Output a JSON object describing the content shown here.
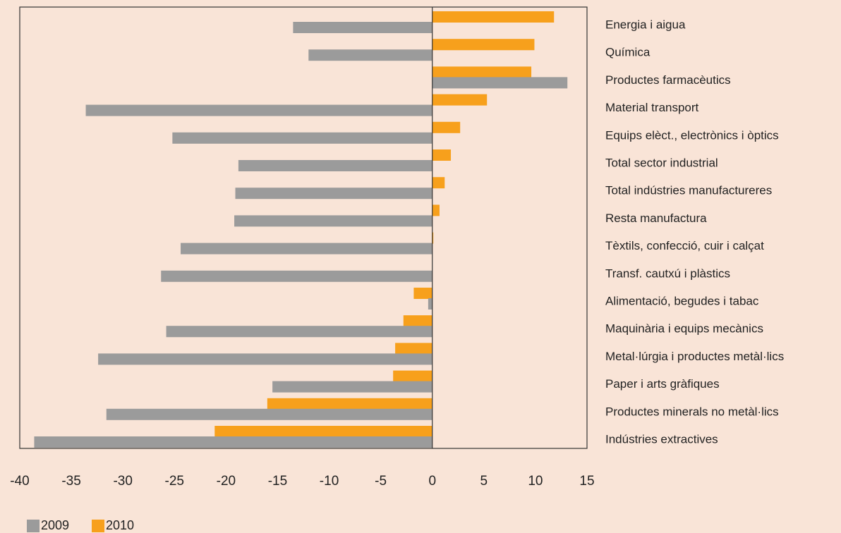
{
  "chart_data": {
    "type": "bar",
    "orientation": "horizontal",
    "categories": [
      "Energia i aigua",
      "Química",
      "Productes farmacèutics",
      "Material transport",
      "Equips elèct., electrònics i òptics",
      "Total sector industrial",
      "Total indústries manufactureres",
      "Resta manufactura",
      "Tèxtils, confecció, cuir i calçat",
      "Transf. cautxú i plàstics",
      "Alimentació, begudes i tabac",
      "Maquinària i equips mecànics",
      "Metal·lúrgia i productes metàl·lics",
      "Paper i arts gràfiques",
      "Productes minerals no metàl·lics",
      "Indústries extractives"
    ],
    "series": [
      {
        "name": "2010",
        "color": "#f7a01c",
        "values": [
          11.8,
          9.9,
          9.6,
          5.3,
          2.7,
          1.8,
          1.2,
          0.7,
          0.1,
          0,
          -1.8,
          -2.8,
          -3.6,
          -3.8,
          -16.0,
          -21.1
        ]
      },
      {
        "name": "2009",
        "color": "#9b9b9b",
        "values": [
          -13.5,
          -12.0,
          13.1,
          -33.6,
          -25.2,
          -18.8,
          -19.1,
          -19.2,
          -24.4,
          -26.3,
          -0.4,
          -25.8,
          -32.4,
          -15.5,
          -31.6,
          -38.6
        ]
      }
    ],
    "xlim": [
      -40,
      15
    ],
    "xticks": [
      -40,
      -35,
      -30,
      -25,
      -20,
      -15,
      -10,
      -5,
      0,
      5,
      10,
      15
    ]
  }
}
